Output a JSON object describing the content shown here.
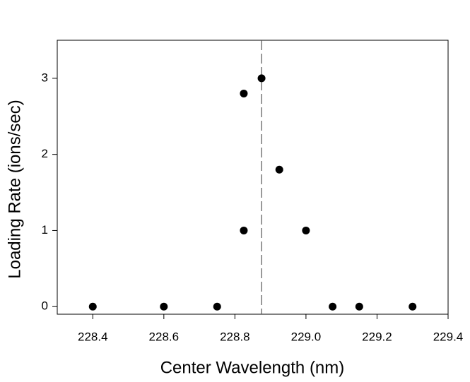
{
  "chart_data": {
    "type": "scatter",
    "x_label": "Center Wavelength (nm)",
    "y_label": "Loading Rate (ions/sec)",
    "x": [
      228.4,
      228.6,
      228.75,
      228.825,
      228.825,
      228.875,
      228.925,
      229.0,
      229.075,
      229.15,
      229.3
    ],
    "values": [
      0,
      0,
      0,
      2.8,
      1,
      3,
      1.8,
      1,
      0,
      0,
      0
    ],
    "color": "#000000",
    "xlim": [
      228.3,
      229.4
    ],
    "xticks": [
      {
        "value": 228.4,
        "label": "228.4"
      },
      {
        "value": 228.6,
        "label": "228.6"
      },
      {
        "value": 228.8,
        "label": "228.8"
      },
      {
        "value": 229.0,
        "label": "229.0"
      },
      {
        "value": 229.2,
        "label": "229.2"
      },
      {
        "value": 229.4,
        "label": "229.4"
      }
    ],
    "ylim": [
      -0.1,
      3.5
    ],
    "yticks": [
      0,
      1,
      2,
      3
    ],
    "vline": 228.875,
    "grid": false
  }
}
